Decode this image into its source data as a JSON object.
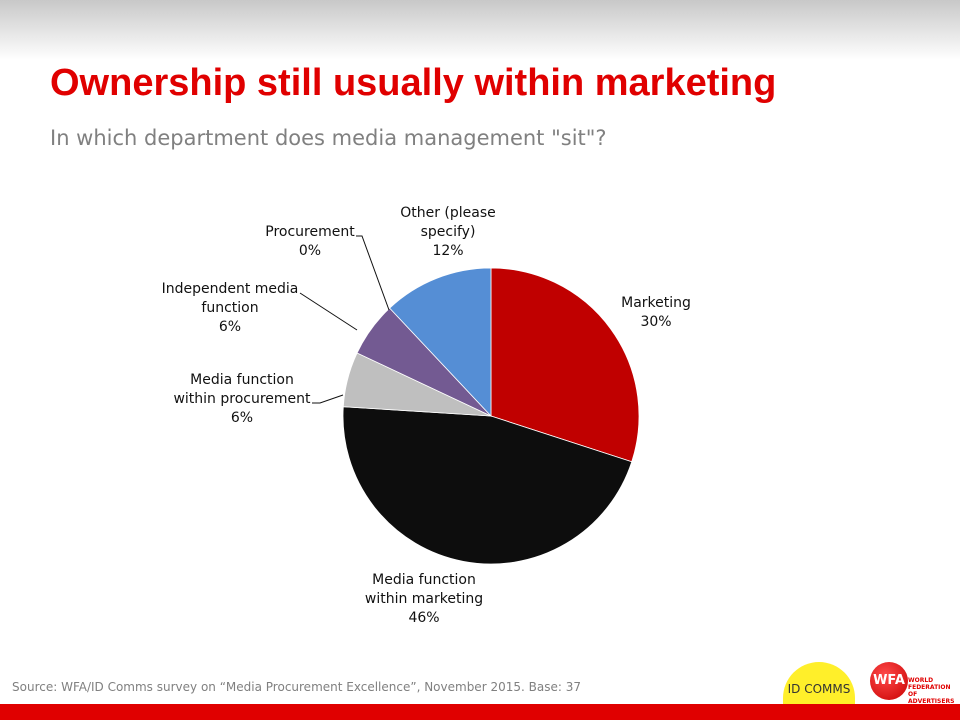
{
  "title": "Ownership still usually within marketing",
  "subtitle": "In which department does media management \"sit\"?",
  "source": "Source: WFA/ID Comms survey on “Media Procurement Excellence”, November  2015. Base: 37",
  "logos": {
    "idcomms": "ID COMMS",
    "wfa": "WFA",
    "wfa_full": "WORLD FEDERATION OF ADVERTISERS"
  },
  "colors": {
    "accent": "#e00000"
  },
  "chart_data": {
    "type": "pie",
    "start": "top",
    "direction": "clockwise",
    "slices": [
      {
        "label_lines": [
          "Marketing",
          "30%"
        ],
        "name": "Marketing",
        "value": 30,
        "color": "#c00000"
      },
      {
        "label_lines": [
          "Media function",
          "within marketing",
          "46%"
        ],
        "name": "Media function within marketing",
        "value": 46,
        "color": "#0d0d0d"
      },
      {
        "label_lines": [
          "Media function",
          "within procurement",
          "6%"
        ],
        "name": "Media function within procurement",
        "value": 6,
        "color": "#bfbfbf"
      },
      {
        "label_lines": [
          "Independent media",
          "function",
          "6%"
        ],
        "name": "Independent media function",
        "value": 6,
        "color": "#735a92"
      },
      {
        "label_lines": [
          "Procurement",
          "0%"
        ],
        "name": "Procurement",
        "value": 0,
        "color": "#4a7ebb"
      },
      {
        "label_lines": [
          "Other (please",
          "specify)",
          "12%"
        ],
        "name": "Other (please specify)",
        "value": 12,
        "color": "#558ed5"
      }
    ]
  }
}
